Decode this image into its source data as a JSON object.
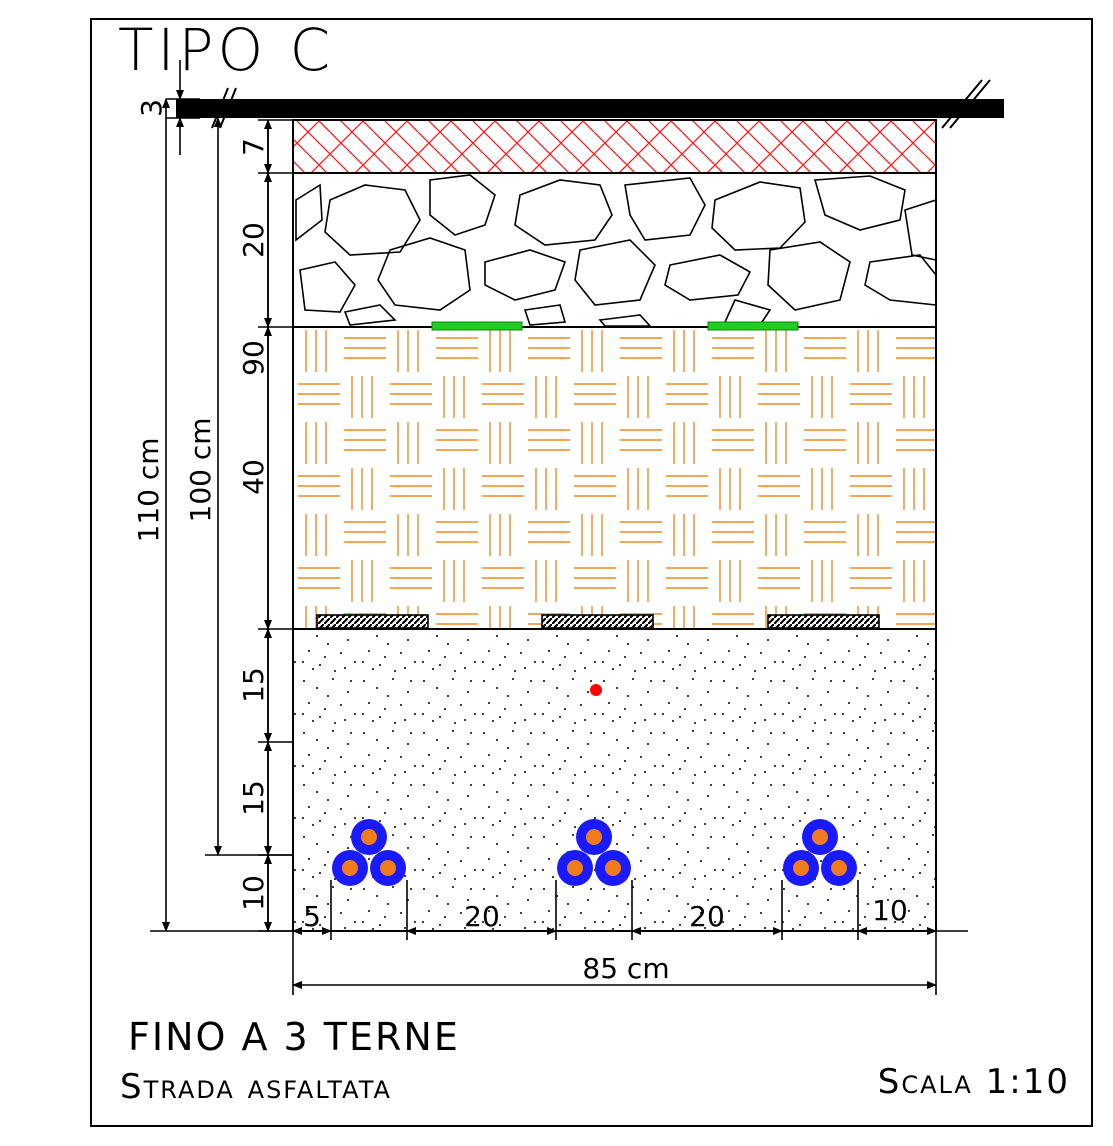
{
  "title": "TIPO C",
  "footer": {
    "line1": "FINO A 3 TERNE",
    "line2": "Strada asfaltata",
    "scale": "Scala 1:10"
  },
  "vertical_dimensions": {
    "asphalt_top": "3",
    "binder": "7",
    "stone_base": "20",
    "depth_total_upper": "90",
    "sand_bed": "40",
    "upper_15": "15",
    "lower_15": "15",
    "bottom_10": "10",
    "overall_110": "110 cm",
    "overall_100": "100 cm"
  },
  "horizontal_dimensions": {
    "left_5": "5",
    "gap_1": "20",
    "gap_2": "20",
    "right_10": "10",
    "overall_width": "85 cm"
  },
  "colors": {
    "line": "#000000",
    "hatch_red": "#ff1a1a",
    "hatch_orange": "#f08a24",
    "marker_green": "#22cc22",
    "cable_outer": "#1a1aff",
    "cable_core": "#f07c1e",
    "marker_dot": "#ff0000"
  },
  "cable_groups": 3
}
